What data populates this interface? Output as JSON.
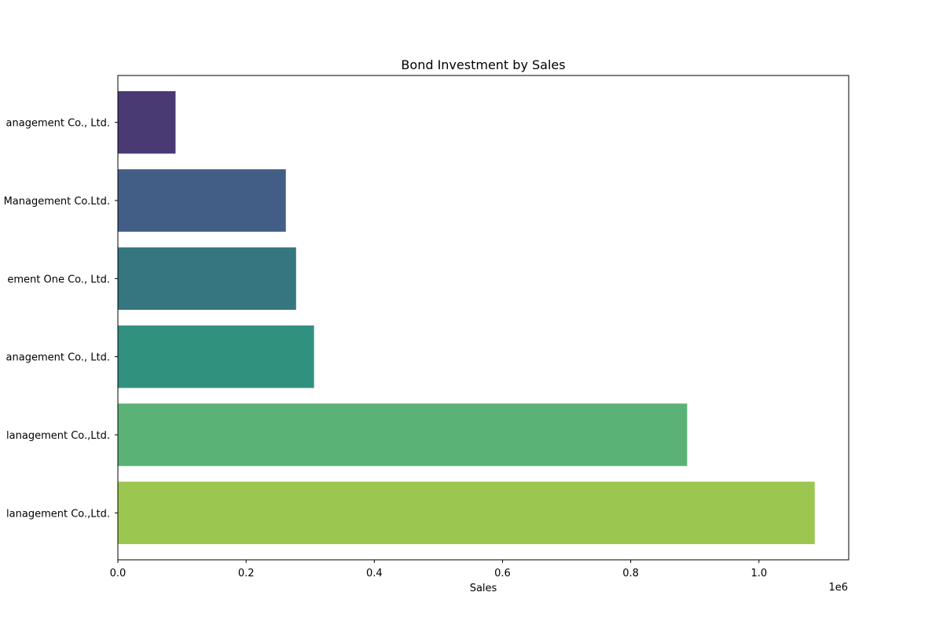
{
  "chart_data": {
    "type": "bar",
    "orientation": "horizontal",
    "title": "Bond Investment by Sales",
    "xlabel": "Sales",
    "ylabel": "",
    "x_scale_label": "1e6",
    "xlim": [
      0,
      1140000
    ],
    "x_ticks": [
      0,
      200000,
      400000,
      600000,
      800000,
      1000000
    ],
    "x_tick_labels": [
      "0.0",
      "0.2",
      "0.4",
      "0.6",
      "0.8",
      "1.0"
    ],
    "categories": [
      "anagement Co., Ltd.",
      "Management Co.Ltd.",
      "ement One Co., Ltd.",
      "anagement Co., Ltd.",
      "lanagement Co.,Ltd.",
      "lanagement Co.,Ltd."
    ],
    "values": [
      90000,
      262000,
      278000,
      306000,
      888000,
      1087000
    ],
    "colors": [
      "#4a3a74",
      "#435e86",
      "#357680",
      "#31917f",
      "#5ab277",
      "#9bc750"
    ],
    "grid": false,
    "legend": "none"
  }
}
